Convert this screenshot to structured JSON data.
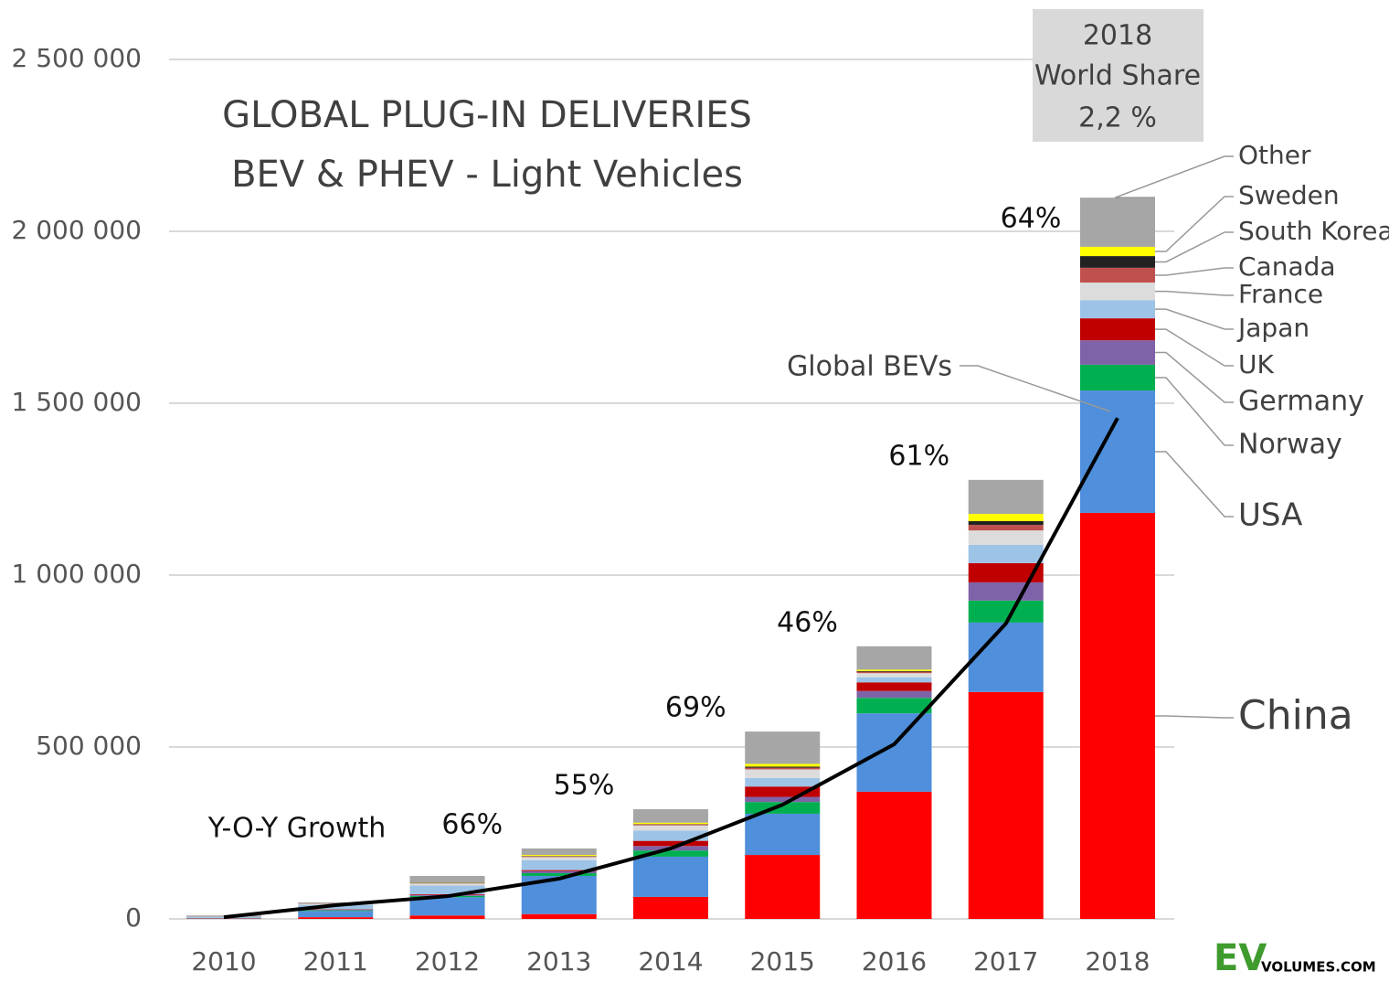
{
  "chart_data": {
    "type": "bar",
    "stacked": true,
    "title": "GLOBAL PLUG-IN DELIVERIES",
    "subtitle": "BEV & PHEV - Light Vehicles",
    "annotation": [
      "2018",
      "World Share",
      "2,2 %"
    ],
    "logo": {
      "main": "EV",
      "sub": "VOLUMES.COM",
      "color": "#3f9b2e"
    },
    "categories": [
      "2010",
      "2011",
      "2012",
      "2013",
      "2014",
      "2015",
      "2016",
      "2017",
      "2018"
    ],
    "series": [
      {
        "name": "China",
        "color": "#ff0000",
        "values": [
          1000,
          5000,
          10000,
          14000,
          64000,
          186000,
          370000,
          660000,
          1181000
        ]
      },
      {
        "name": "USA",
        "color": "#4f8fdb",
        "values": [
          1000,
          18000,
          53000,
          111000,
          117000,
          120000,
          228000,
          202000,
          356000
        ]
      },
      {
        "name": "Norway",
        "color": "#00b050",
        "values": [
          400,
          2000,
          4000,
          8000,
          18000,
          34000,
          45000,
          64000,
          75000
        ]
      },
      {
        "name": "Germany",
        "color": "#7f63a8",
        "values": [
          200,
          2000,
          3000,
          6000,
          13000,
          15000,
          20000,
          53000,
          71000
        ]
      },
      {
        "name": "UK",
        "color": "#c00000",
        "values": [
          200,
          1000,
          2000,
          3000,
          15000,
          30000,
          25000,
          56000,
          64000
        ]
      },
      {
        "name": "Japan",
        "color": "#9dc3e6",
        "values": [
          3000,
          13000,
          25000,
          29000,
          30000,
          25000,
          15000,
          53000,
          53000
        ]
      },
      {
        "name": "France",
        "color": "#dcdcdc",
        "values": [
          100,
          3000,
          6000,
          9000,
          15000,
          25000,
          12000,
          42000,
          51000
        ]
      },
      {
        "name": "Canada",
        "color": "#c0504d",
        "values": [
          0,
          1000,
          1000,
          2000,
          3000,
          5000,
          4000,
          16000,
          43000
        ]
      },
      {
        "name": "South Korea",
        "color": "#222222",
        "values": [
          0,
          0,
          1000,
          1000,
          1000,
          3000,
          2000,
          11000,
          34000
        ]
      },
      {
        "name": "Sweden",
        "color": "#ffff00",
        "values": [
          0,
          0,
          1000,
          3000,
          4000,
          8000,
          4000,
          21000,
          27000
        ]
      },
      {
        "name": "Other",
        "color": "#a6a6a6",
        "values": [
          4100,
          3000,
          19000,
          19000,
          39000,
          94000,
          68000,
          99000,
          143000
        ]
      }
    ],
    "line": {
      "name": "Global BEVs",
      "color": "#000000",
      "values": [
        5000,
        40000,
        66000,
        117000,
        205000,
        332000,
        508000,
        859000,
        1457000
      ]
    },
    "growth": {
      "label": "Y-O-Y Growth",
      "values": [
        null,
        null,
        null,
        66,
        55,
        69,
        46,
        61,
        64
      ],
      "value_labels": [
        null,
        null,
        null,
        "66%",
        "55%",
        "69%",
        "46%",
        "61%",
        "64%"
      ]
    },
    "ylim": [
      0,
      2500000
    ],
    "yticks": [
      0,
      {
        "value": 500000,
        "label": "500 000"
      },
      {
        "value": 1000000,
        "label": "1 000 000"
      },
      {
        "value": 1500000,
        "label": "1 500 000"
      },
      {
        "value": 2000000,
        "label": "2 000 000"
      },
      {
        "value": 2500000,
        "label": "2 500 000"
      }
    ],
    "grid": true
  }
}
